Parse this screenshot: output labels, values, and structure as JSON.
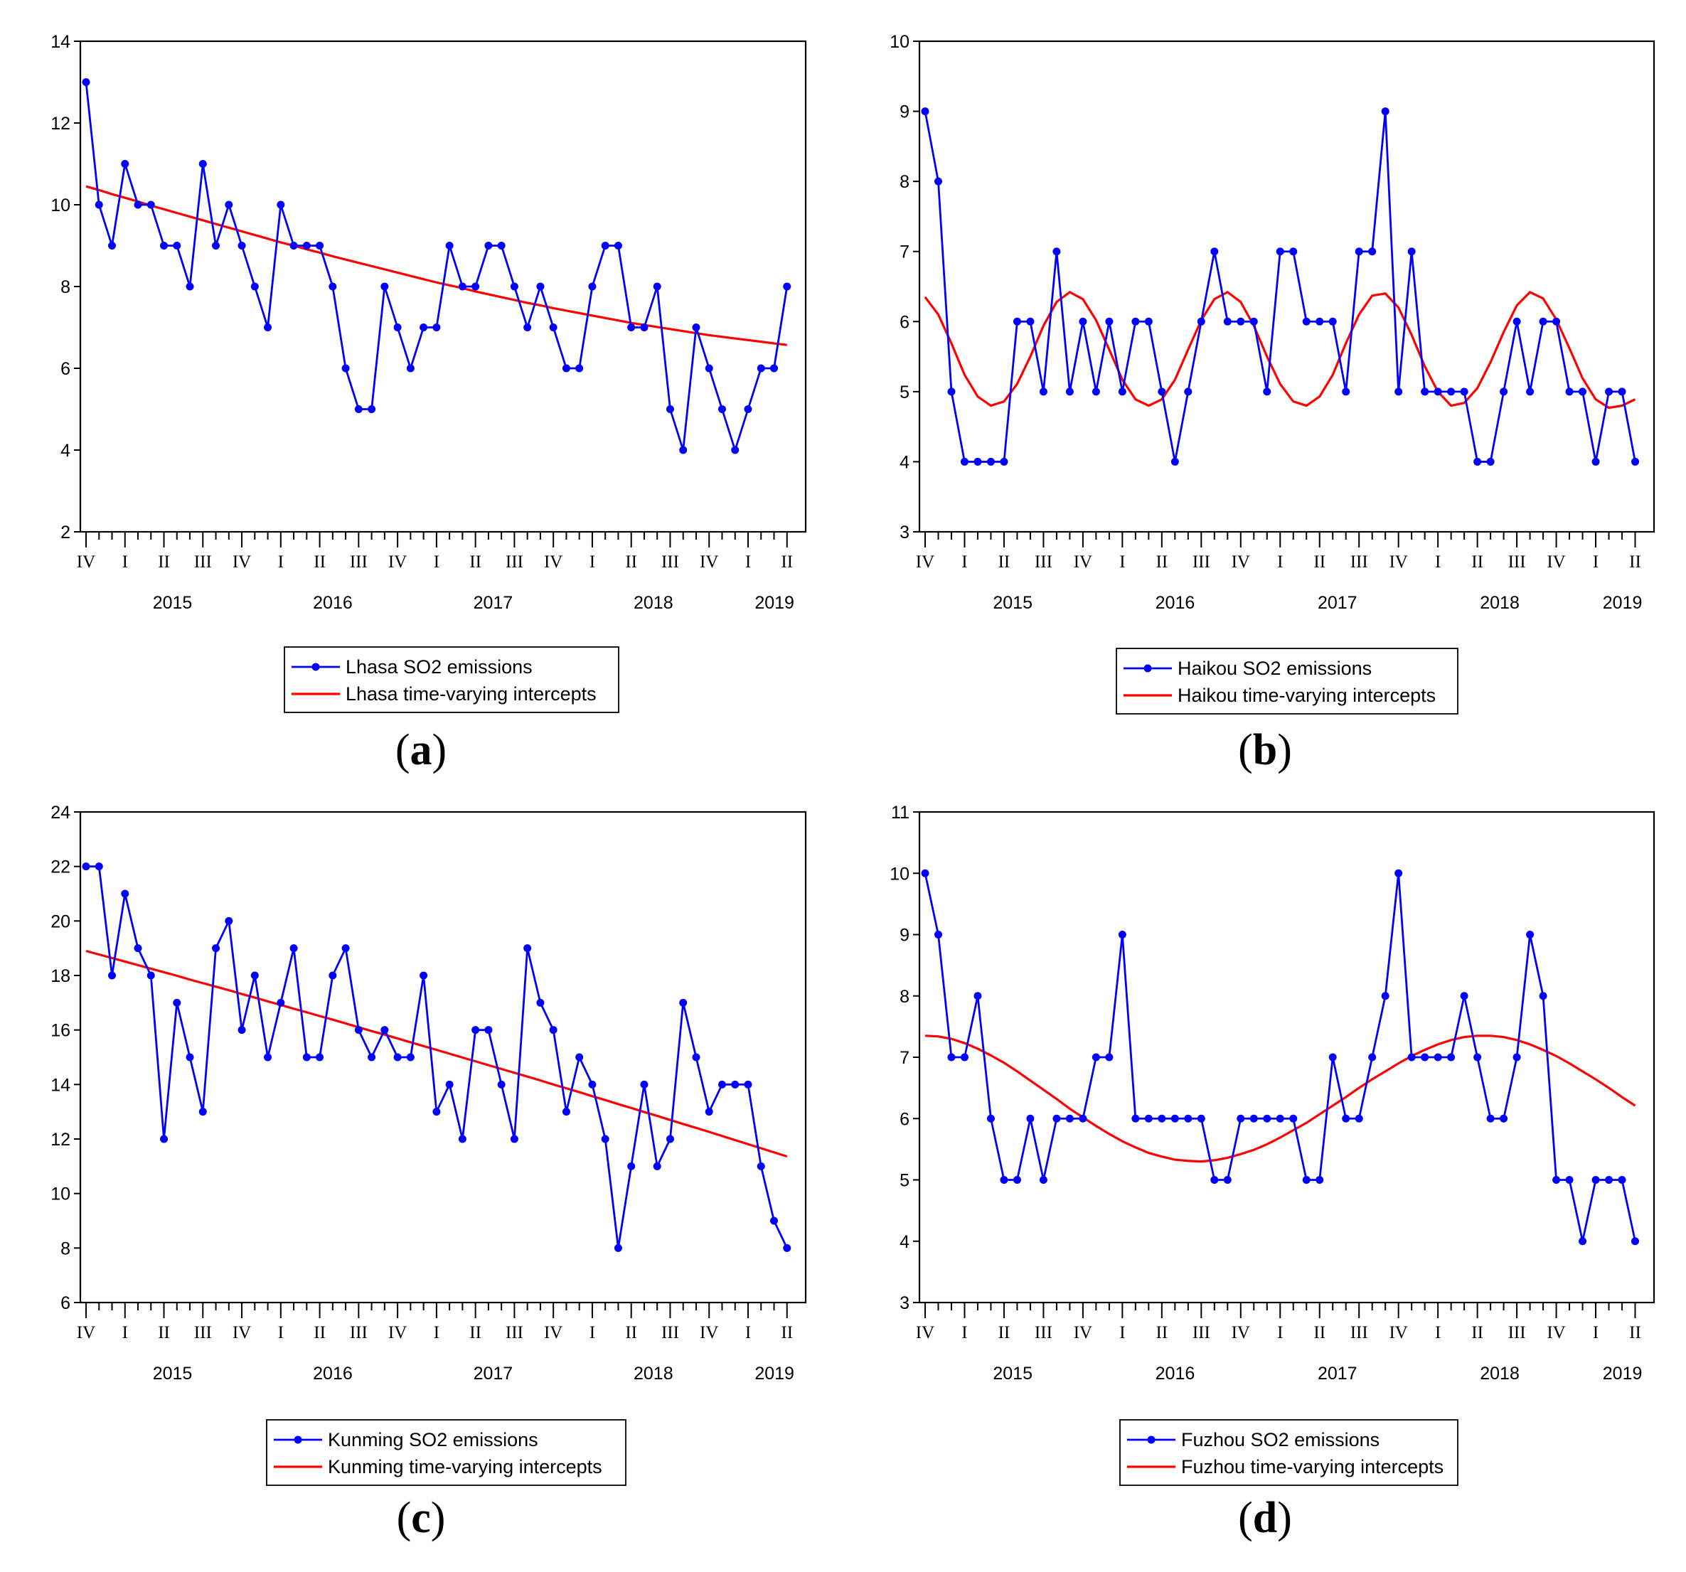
{
  "figure": {
    "panels": [
      {
        "letter": "a"
      },
      {
        "letter": "b"
      },
      {
        "letter": "c"
      },
      {
        "letter": "d"
      }
    ]
  },
  "colors": {
    "emissions": "#0000FF",
    "intercepts": "#FF0000"
  },
  "chart_data": [
    {
      "type": "line",
      "panel_label": "(a)",
      "x_quarter_labels": [
        "IV",
        "I",
        "II",
        "III",
        "IV",
        "I",
        "II",
        "III",
        "IV",
        "I",
        "II",
        "III",
        "IV",
        "I",
        "II",
        "III",
        "IV",
        "I",
        "II"
      ],
      "x_year_labels": [
        "2015",
        "2016",
        "2017",
        "2018",
        "2019"
      ],
      "y_ticks": [
        2,
        4,
        6,
        8,
        10,
        12,
        14
      ],
      "ylim": [
        2,
        14
      ],
      "series": [
        {
          "name": "Lhasa SO2 emissions",
          "marker": "dot",
          "values": [
            13,
            10,
            9,
            11,
            10,
            10,
            9,
            9,
            8,
            11,
            9,
            10,
            9,
            8,
            7,
            10,
            9,
            9,
            9,
            8,
            6,
            5,
            5,
            8,
            7,
            6,
            7,
            7,
            9,
            8,
            8,
            9,
            9,
            8,
            7,
            8,
            7,
            6,
            6,
            8,
            9,
            9,
            7,
            7,
            8,
            5,
            4,
            7,
            6,
            5,
            4,
            5,
            6,
            6,
            8
          ]
        },
        {
          "name": "Lhasa time-varying intercepts",
          "marker": "none",
          "values": [
            10.45,
            10.36,
            10.26,
            10.17,
            10.08,
            9.98,
            9.89,
            9.8,
            9.71,
            9.62,
            9.53,
            9.44,
            9.35,
            9.26,
            9.17,
            9.08,
            9.0,
            8.91,
            8.83,
            8.74,
            8.66,
            8.58,
            8.5,
            8.42,
            8.34,
            8.26,
            8.18,
            8.1,
            8.03,
            7.96,
            7.88,
            7.81,
            7.74,
            7.67,
            7.6,
            7.54,
            7.47,
            7.41,
            7.35,
            7.29,
            7.23,
            7.17,
            7.11,
            7.06,
            7.01,
            6.96,
            6.91,
            6.86,
            6.81,
            6.77,
            6.73,
            6.69,
            6.65,
            6.61,
            6.57
          ]
        }
      ]
    },
    {
      "type": "line",
      "panel_label": "(b)",
      "x_quarter_labels": [
        "IV",
        "I",
        "II",
        "III",
        "IV",
        "I",
        "II",
        "III",
        "IV",
        "I",
        "II",
        "III",
        "IV",
        "I",
        "II",
        "III",
        "IV",
        "I",
        "II"
      ],
      "x_year_labels": [
        "2015",
        "2016",
        "2017",
        "2018",
        "2019"
      ],
      "y_ticks": [
        3,
        4,
        5,
        6,
        7,
        8,
        9,
        10
      ],
      "ylim": [
        3,
        10
      ],
      "series": [
        {
          "name": "Haikou SO2 emissions",
          "marker": "dot",
          "values": [
            9,
            8,
            5,
            4,
            4,
            4,
            4,
            6,
            6,
            5,
            7,
            5,
            6,
            5,
            6,
            5,
            6,
            6,
            5,
            4,
            5,
            6,
            7,
            6,
            6,
            6,
            5,
            7,
            7,
            6,
            6,
            6,
            5,
            7,
            7,
            9,
            5,
            7,
            5,
            5,
            5,
            5,
            4,
            4,
            5,
            6,
            5,
            6,
            6,
            5,
            5,
            4,
            5,
            5,
            4
          ]
        },
        {
          "name": "Haikou time-varying intercepts",
          "marker": "none",
          "values": [
            6.35,
            6.1,
            5.69,
            5.24,
            4.93,
            4.8,
            4.86,
            5.11,
            5.5,
            5.94,
            6.28,
            6.42,
            6.32,
            6.02,
            5.6,
            5.17,
            4.89,
            4.8,
            4.89,
            5.17,
            5.6,
            6.02,
            6.32,
            6.42,
            6.28,
            5.94,
            5.5,
            5.11,
            4.86,
            4.8,
            4.93,
            5.24,
            5.69,
            6.1,
            6.37,
            6.4,
            6.2,
            5.81,
            5.36,
            5.0,
            4.8,
            4.84,
            5.05,
            5.42,
            5.85,
            6.23,
            6.42,
            6.33,
            6.03,
            5.62,
            5.19,
            4.89,
            4.77,
            4.8,
            4.89
          ]
        }
      ]
    },
    {
      "type": "line",
      "panel_label": "(c)",
      "x_quarter_labels": [
        "IV",
        "I",
        "II",
        "III",
        "IV",
        "I",
        "II",
        "III",
        "IV",
        "I",
        "II",
        "III",
        "IV",
        "I",
        "II",
        "III",
        "IV",
        "I",
        "II"
      ],
      "x_year_labels": [
        "2015",
        "2016",
        "2017",
        "2018",
        "2019"
      ],
      "y_ticks": [
        6,
        8,
        10,
        12,
        14,
        16,
        18,
        20,
        22,
        24
      ],
      "ylim": [
        6,
        24
      ],
      "series": [
        {
          "name": "Kunming SO2 emissions",
          "marker": "dot",
          "values": [
            22,
            22,
            18,
            21,
            19,
            18,
            12,
            17,
            15,
            13,
            19,
            20,
            16,
            18,
            15,
            17,
            19,
            15,
            15,
            18,
            19,
            16,
            15,
            16,
            15,
            15,
            18,
            13,
            14,
            12,
            16,
            16,
            14,
            12,
            19,
            17,
            16,
            13,
            15,
            14,
            12,
            8,
            11,
            14,
            11,
            12,
            17,
            15,
            13,
            14,
            14,
            14,
            11,
            9,
            8
          ]
        },
        {
          "name": "Kunming time-varying intercepts",
          "marker": "none",
          "values": [
            18.9,
            18.77,
            18.64,
            18.51,
            18.38,
            18.25,
            18.12,
            17.99,
            17.85,
            17.72,
            17.59,
            17.46,
            17.32,
            17.19,
            17.05,
            16.92,
            16.78,
            16.65,
            16.51,
            16.38,
            16.24,
            16.1,
            15.96,
            15.83,
            15.69,
            15.55,
            15.41,
            15.27,
            15.13,
            14.99,
            14.85,
            14.71,
            14.57,
            14.43,
            14.29,
            14.15,
            14.0,
            13.86,
            13.72,
            13.57,
            13.43,
            13.28,
            13.14,
            12.99,
            12.85,
            12.7,
            12.55,
            12.41,
            12.26,
            12.11,
            11.96,
            11.81,
            11.66,
            11.51,
            11.36
          ]
        }
      ]
    },
    {
      "type": "line",
      "panel_label": "(d)",
      "x_quarter_labels": [
        "IV",
        "I",
        "II",
        "III",
        "IV",
        "I",
        "II",
        "III",
        "IV",
        "I",
        "II",
        "III",
        "IV",
        "I",
        "II",
        "III",
        "IV",
        "I",
        "II"
      ],
      "x_year_labels": [
        "2015",
        "2016",
        "2017",
        "2018",
        "2019"
      ],
      "y_ticks": [
        3,
        4,
        5,
        6,
        7,
        8,
        9,
        10,
        11
      ],
      "ylim": [
        3,
        11
      ],
      "series": [
        {
          "name": "Fuzhou SO2 emissions",
          "marker": "dot",
          "values": [
            10,
            9,
            7,
            7,
            8,
            6,
            5,
            5,
            6,
            5,
            6,
            6,
            6,
            7,
            7,
            9,
            6,
            6,
            6,
            6,
            6,
            6,
            5,
            5,
            6,
            6,
            6,
            6,
            6,
            5,
            5,
            7,
            6,
            6,
            7,
            8,
            10,
            7,
            7,
            7,
            7,
            8,
            7,
            6,
            6,
            7,
            9,
            8,
            5,
            5,
            4,
            5,
            5,
            5,
            4
          ]
        },
        {
          "name": "Fuzhou time-varying intercepts",
          "marker": "none",
          "values": [
            7.35,
            7.34,
            7.3,
            7.23,
            7.14,
            7.03,
            6.91,
            6.77,
            6.62,
            6.47,
            6.32,
            6.16,
            6.02,
            5.88,
            5.75,
            5.63,
            5.53,
            5.44,
            5.38,
            5.33,
            5.31,
            5.3,
            5.32,
            5.36,
            5.42,
            5.49,
            5.58,
            5.69,
            5.81,
            5.93,
            6.07,
            6.21,
            6.35,
            6.5,
            6.64,
            6.77,
            6.9,
            7.02,
            7.12,
            7.21,
            7.28,
            7.33,
            7.35,
            7.35,
            7.33,
            7.28,
            7.21,
            7.12,
            7.02,
            6.9,
            6.77,
            6.64,
            6.5,
            6.35,
            6.21
          ]
        }
      ]
    }
  ]
}
